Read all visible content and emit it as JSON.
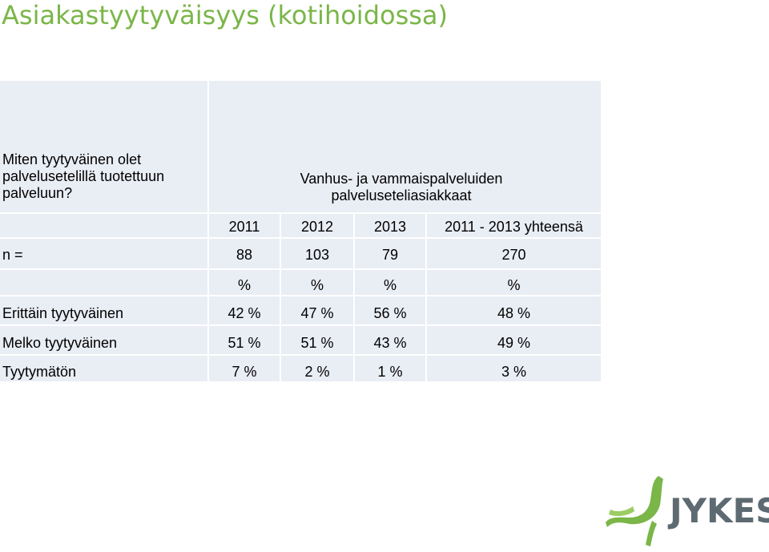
{
  "title": "Asiakastyytyväisyys (kotihoidossa)",
  "table": {
    "question": "Miten tyytyväinen olet palvelusetelillä tuotettuun palveluun?",
    "group_header": "Vanhus- ja vammaispalveluiden palveluseteliasiakkaat",
    "columns": [
      "2011",
      "2012",
      "2013",
      "2011 - 2013 yhteensä"
    ],
    "rows": [
      {
        "label": "n =",
        "values": [
          "88",
          "103",
          "79",
          "270"
        ]
      },
      {
        "label": "",
        "values": [
          "%",
          "%",
          "%",
          "%"
        ]
      },
      {
        "label": "Erittäin tyytyväinen",
        "values": [
          "42 %",
          "47 %",
          "56 %",
          "48 %"
        ]
      },
      {
        "label": "Melko tyytyväinen",
        "values": [
          "51 %",
          "51 %",
          "43 %",
          "49 %"
        ]
      },
      {
        "label": "Tyytymätön",
        "values": [
          "7 %",
          "2 %",
          "1 %",
          "3 %"
        ]
      }
    ]
  },
  "logo": {
    "text": "JYKES",
    "text_color": "#5e6a72",
    "mark_color": "#7ab648"
  }
}
